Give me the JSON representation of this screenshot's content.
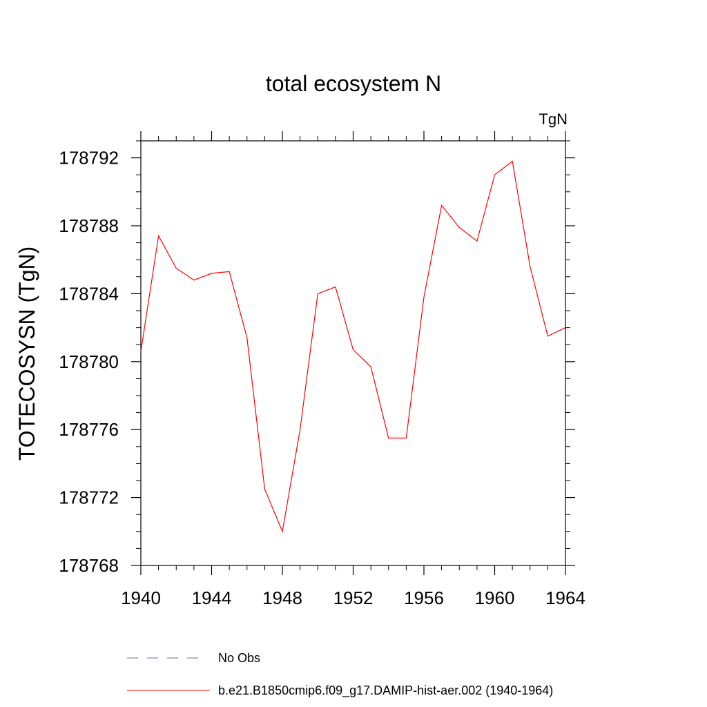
{
  "chart_data": {
    "type": "line",
    "title": "total ecosystem N",
    "units_label": "TgN",
    "ylabel": "TOTECOSYSN  (TgN)",
    "xlabel": "",
    "xlim": [
      1940,
      1964
    ],
    "ylim": [
      178768,
      178793
    ],
    "x_ticks": [
      1940,
      1944,
      1948,
      1952,
      1956,
      1960,
      1964
    ],
    "y_ticks": [
      178768,
      178772,
      178776,
      178780,
      178784,
      178788,
      178792
    ],
    "x_minor_step": 1,
    "y_minor_step": 1,
    "grid": false,
    "legend_position": "bottom",
    "legend": [
      {
        "name": "No Obs",
        "style": "dashed",
        "color": "#6a6ad0"
      },
      {
        "name": "b.e21.B1850cmip6.f09_g17.DAMIP-hist-aer.002 (1940-1964)",
        "style": "solid",
        "color": "#ff0000"
      }
    ],
    "series": [
      {
        "name": "b.e21.B1850cmip6.f09_g17.DAMIP-hist-aer.002 (1940-1964)",
        "color": "#ff0000",
        "x": [
          1940,
          1941,
          1942,
          1943,
          1944,
          1945,
          1946,
          1947,
          1948,
          1949,
          1950,
          1951,
          1952,
          1953,
          1954,
          1955,
          1956,
          1957,
          1958,
          1959,
          1960,
          1961,
          1962,
          1963,
          1964
        ],
        "y": [
          178780.6,
          178787.4,
          178785.5,
          178784.8,
          178785.2,
          178785.3,
          178781.4,
          178772.5,
          178770.0,
          178776.0,
          178784.0,
          178784.4,
          178780.7,
          178779.7,
          178775.5,
          178775.5,
          178783.8,
          178789.2,
          178787.9,
          178787.1,
          178791.0,
          178791.8,
          178785.6,
          178781.5,
          178782.0
        ]
      }
    ]
  }
}
